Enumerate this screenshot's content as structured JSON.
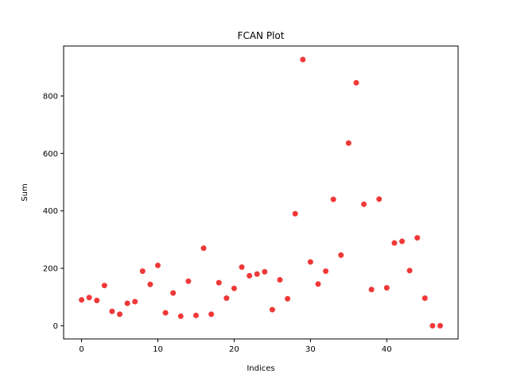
{
  "chart_data": {
    "type": "scatter",
    "title": "FCAN Plot",
    "xlabel": "Indices",
    "ylabel": "Sum",
    "xlim": [
      -2.35,
      49.35
    ],
    "ylim": [
      -46,
      974
    ],
    "xticks": [
      0,
      10,
      20,
      30,
      40
    ],
    "yticks": [
      0,
      200,
      400,
      600,
      800
    ],
    "x_tick_labels": [
      "0",
      "10",
      "20",
      "30",
      "40"
    ],
    "y_tick_labels": [
      "0",
      "200",
      "400",
      "600",
      "800"
    ],
    "grid": false,
    "legend": "none",
    "marker_color": "#ee2222",
    "marker_alpha": 0.9,
    "series": [
      {
        "x": [
          0,
          1,
          2,
          3,
          4,
          5,
          6,
          7,
          8,
          9,
          10,
          11,
          12,
          13,
          14,
          15,
          16,
          17,
          18,
          19,
          20,
          21,
          22,
          23,
          24,
          25,
          26,
          27,
          28,
          29,
          30,
          31,
          32,
          33,
          34,
          35,
          36,
          37,
          38,
          39,
          40,
          41,
          42,
          43,
          44,
          45,
          46,
          47
        ],
        "values": [
          90,
          98,
          88,
          140,
          50,
          40,
          78,
          84,
          190,
          144,
          210,
          45,
          114,
          33,
          155,
          36,
          270,
          40,
          150,
          96,
          130,
          204,
          174,
          180,
          188,
          56,
          160,
          94,
          390,
          927,
          222,
          145,
          190,
          440,
          246,
          636,
          846,
          423,
          126,
          441,
          132,
          288,
          294,
          192,
          306,
          96,
          0,
          0
        ]
      }
    ]
  }
}
